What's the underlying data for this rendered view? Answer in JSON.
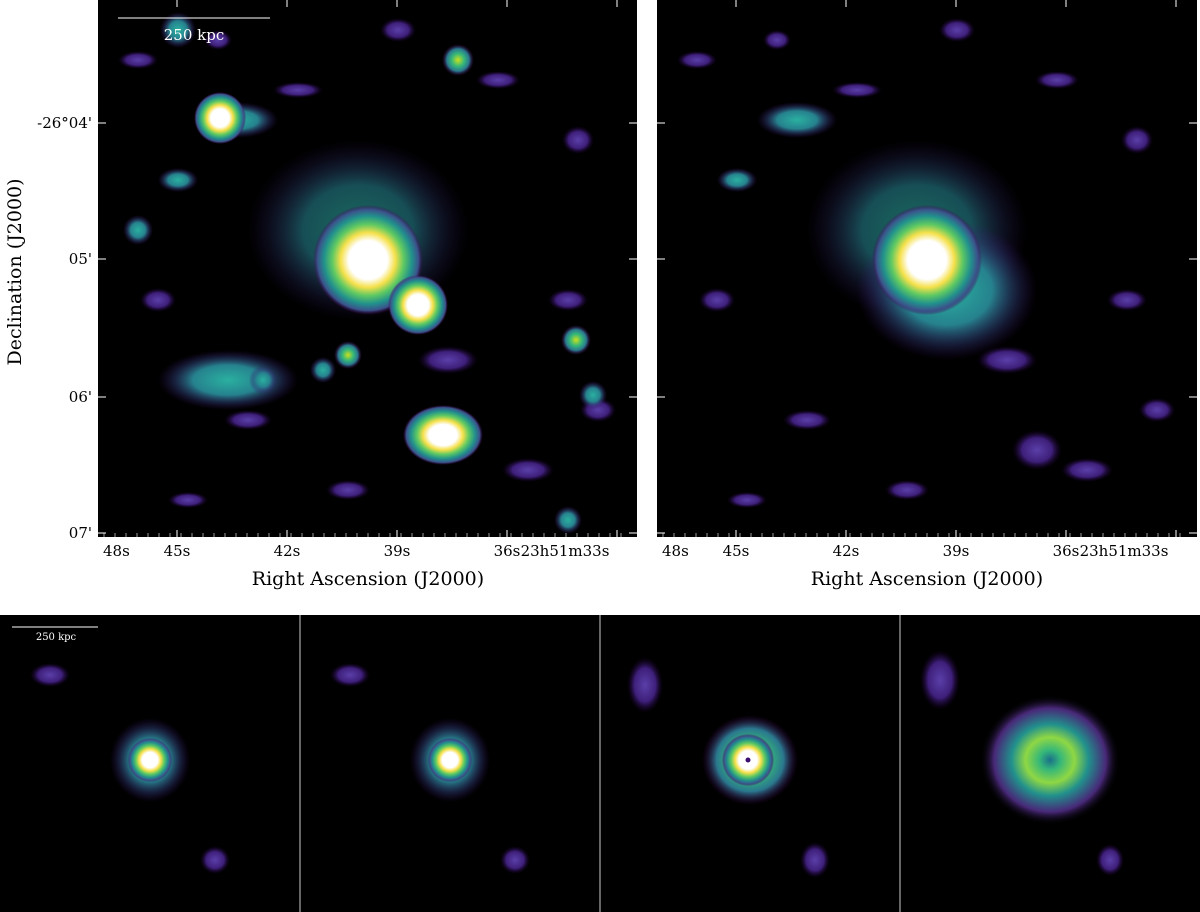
{
  "top_left": {
    "scale_bar": "250 kpc",
    "ylabel": "Declination (J2000)",
    "yticks": [
      "-26°04'",
      "05'",
      "06'",
      "07'"
    ],
    "xlabel": "Right Ascension (J2000)",
    "xticks": [
      "48s",
      "45s",
      "42s",
      "39s",
      "36s",
      "23h51m33s"
    ]
  },
  "top_right": {
    "xlabel": "Right Ascension (J2000)",
    "xticks": [
      "48s",
      "45s",
      "42s",
      "39s",
      "36s",
      "23h51m33s"
    ]
  },
  "bottom": {
    "scale_bar": "250 kpc"
  }
}
